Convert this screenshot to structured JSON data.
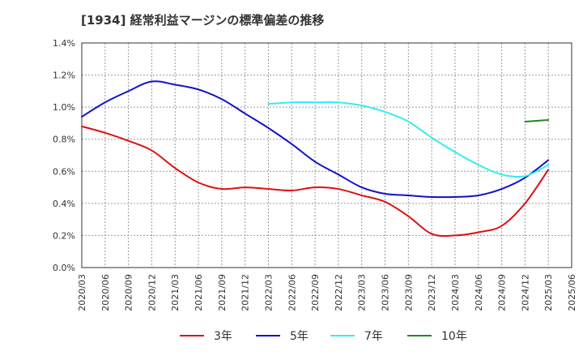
{
  "chart_data": {
    "type": "line",
    "title": "[1934]  経常利益マージンの標準偏差の推移",
    "xlabel": "",
    "ylabel": "",
    "x_tick_labels": [
      "2020/03",
      "2020/06",
      "2020/09",
      "2020/12",
      "2021/03",
      "2021/06",
      "2021/09",
      "2021/12",
      "2022/03",
      "2022/06",
      "2022/09",
      "2022/12",
      "2023/03",
      "2023/06",
      "2023/09",
      "2023/12",
      "2024/03",
      "2024/06",
      "2024/09",
      "2024/12",
      "2025/03",
      "2025/06"
    ],
    "y_tick_labels": [
      "0.0%",
      "0.2%",
      "0.4%",
      "0.6%",
      "0.8%",
      "1.0%",
      "1.2%",
      "1.4%"
    ],
    "y_ticks": [
      0,
      0.2,
      0.4,
      0.6,
      0.8,
      1.0,
      1.2,
      1.4
    ],
    "ylim": [
      0,
      1.4
    ],
    "grid": true,
    "legend_position": "bottom",
    "series": [
      {
        "name": "3年",
        "color": "#dd1111",
        "x": [
          "2020/03",
          "2020/06",
          "2020/09",
          "2020/12",
          "2021/03",
          "2021/06",
          "2021/09",
          "2021/12",
          "2022/03",
          "2022/06",
          "2022/09",
          "2022/12",
          "2023/03",
          "2023/06",
          "2023/09",
          "2023/12",
          "2024/03",
          "2024/06",
          "2024/09",
          "2024/12",
          "2025/03"
        ],
        "values": [
          0.88,
          0.84,
          0.79,
          0.73,
          0.62,
          0.53,
          0.49,
          0.5,
          0.49,
          0.48,
          0.5,
          0.49,
          0.45,
          0.41,
          0.32,
          0.21,
          0.2,
          0.22,
          0.26,
          0.4,
          0.61
        ]
      },
      {
        "name": "5年",
        "color": "#1111cc",
        "x": [
          "2020/03",
          "2020/06",
          "2020/09",
          "2020/12",
          "2021/03",
          "2021/06",
          "2021/09",
          "2021/12",
          "2022/03",
          "2022/06",
          "2022/09",
          "2022/12",
          "2023/03",
          "2023/06",
          "2023/09",
          "2023/12",
          "2024/03",
          "2024/06",
          "2024/09",
          "2024/12",
          "2025/03"
        ],
        "values": [
          0.94,
          1.03,
          1.1,
          1.16,
          1.14,
          1.11,
          1.05,
          0.96,
          0.87,
          0.77,
          0.66,
          0.58,
          0.5,
          0.46,
          0.45,
          0.44,
          0.44,
          0.45,
          0.49,
          0.56,
          0.67
        ]
      },
      {
        "name": "7年",
        "color": "#33eeee",
        "x": [
          "2022/03",
          "2022/06",
          "2022/09",
          "2022/12",
          "2023/03",
          "2023/06",
          "2023/09",
          "2023/12",
          "2024/03",
          "2024/06",
          "2024/09",
          "2024/12",
          "2025/03"
        ],
        "values": [
          1.02,
          1.03,
          1.03,
          1.03,
          1.01,
          0.97,
          0.91,
          0.81,
          0.72,
          0.64,
          0.58,
          0.57,
          0.64
        ]
      },
      {
        "name": "10年",
        "color": "#228822",
        "x": [
          "2024/12",
          "2025/03"
        ],
        "values": [
          0.91,
          0.92
        ]
      }
    ]
  }
}
